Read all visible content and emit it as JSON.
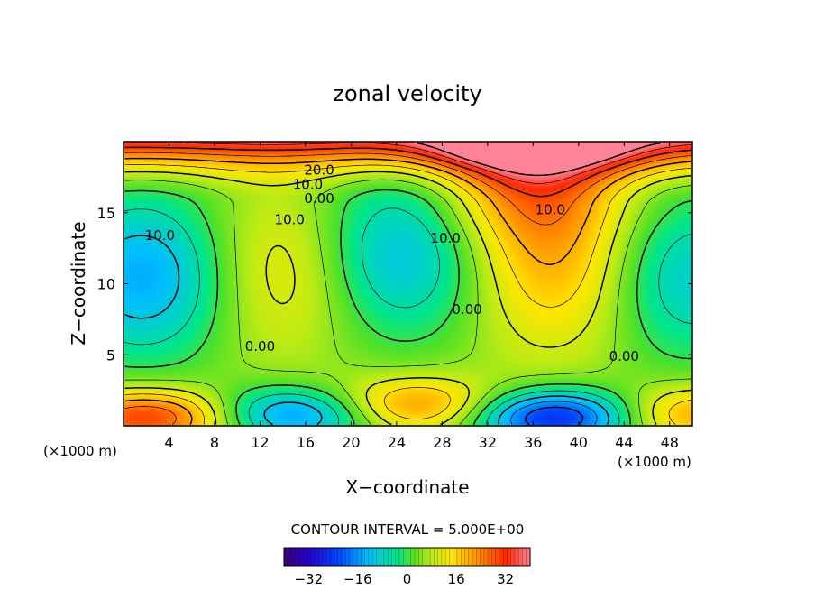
{
  "chart_data": {
    "type": "heatmap",
    "title": "zonal velocity",
    "xlabel": "X−coordinate",
    "ylabel": "Z−coordinate",
    "x_unit_left": "(×1000 m)",
    "x_unit_right": "(×1000 m)",
    "xlim": [
      0,
      50
    ],
    "ylim": [
      0,
      20
    ],
    "x_ticks": [
      4,
      8,
      12,
      16,
      20,
      24,
      28,
      32,
      36,
      40,
      44,
      48
    ],
    "y_ticks": [
      5,
      10,
      15
    ],
    "contour_interval_text": "CONTOUR INTERVAL = 5.000E+00",
    "contour_interval": 5,
    "colorbar_range": [
      -40,
      40
    ],
    "colorbar_ticks": [
      -32,
      -16,
      0,
      16,
      32
    ],
    "contour_labels": [
      {
        "text": "20.0",
        "x": 17.2,
        "y": 18.0
      },
      {
        "text": "10.0",
        "x": 16.2,
        "y": 17.0
      },
      {
        "text": "0.00",
        "x": 17.2,
        "y": 16.0
      },
      {
        "text": "10.0",
        "x": 14.6,
        "y": 14.5
      },
      {
        "text": "10.0",
        "x": 3.2,
        "y": 13.4
      },
      {
        "text": "10.0",
        "x": 28.3,
        "y": 13.2
      },
      {
        "text": "10.0",
        "x": 37.5,
        "y": 15.2
      },
      {
        "text": "0.00",
        "x": 30.2,
        "y": 8.2
      },
      {
        "text": "0.00",
        "x": 12.0,
        "y": 5.6
      },
      {
        "text": "0.00",
        "x": 44.0,
        "y": 4.9
      }
    ],
    "features": [
      {
        "kind": "max",
        "x": 38.5,
        "y": 10.8,
        "value": 20
      },
      {
        "kind": "max",
        "x": 14.5,
        "y": 11.0,
        "value": 17
      },
      {
        "kind": "min",
        "x": 2.0,
        "y": 10.5,
        "value": -17
      },
      {
        "kind": "min",
        "x": 24.0,
        "y": 12.0,
        "value": -15
      },
      {
        "kind": "min",
        "x": 49.0,
        "y": 10.5,
        "value": -12
      },
      {
        "kind": "max",
        "x": 2.5,
        "y": 0.6,
        "value": 35
      },
      {
        "kind": "max",
        "x": 25.5,
        "y": 1.4,
        "value": 28
      },
      {
        "kind": "max",
        "x": 49.5,
        "y": 0.8,
        "value": 25
      },
      {
        "kind": "min",
        "x": 38.0,
        "y": 0.6,
        "value": -32
      },
      {
        "kind": "min",
        "x": 15.0,
        "y": 0.8,
        "value": -22
      },
      {
        "kind": "max",
        "x": 36.0,
        "y": 19.2,
        "value": 34
      }
    ]
  }
}
